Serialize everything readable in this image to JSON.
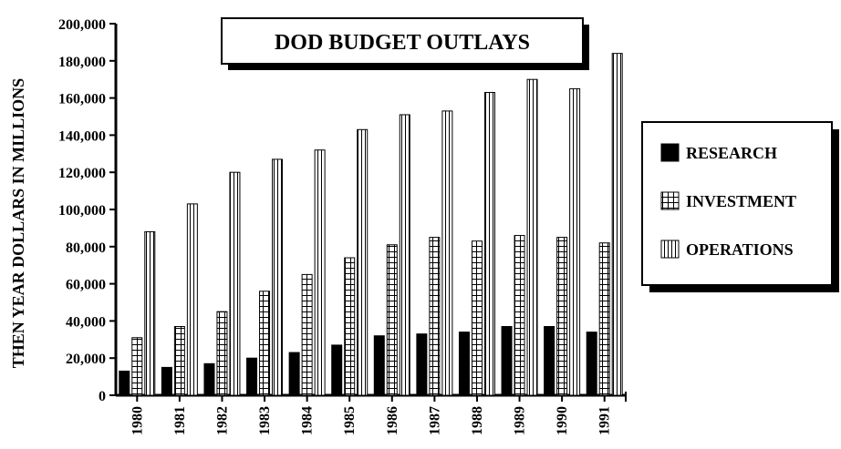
{
  "chart_data": {
    "type": "bar",
    "title": "DOD BUDGET OUTLAYS",
    "xlabel": "",
    "ylabel": "THEN YEAR DOLLARS IN MILLIONS",
    "ylim": [
      0,
      200000
    ],
    "yticks": [
      "0",
      "20,000",
      "40,000",
      "60,000",
      "80,000",
      "100,000",
      "120,000",
      "140,000",
      "160,000",
      "180,000",
      "200,000"
    ],
    "categories": [
      "1980",
      "1981",
      "1982",
      "1983",
      "1984",
      "1985",
      "1986",
      "1987",
      "1988",
      "1989",
      "1990",
      "1991"
    ],
    "series": [
      {
        "name": "RESEARCH",
        "pattern": "solid",
        "values": [
          13000,
          15000,
          17000,
          20000,
          23000,
          27000,
          32000,
          33000,
          34000,
          37000,
          37000,
          34000
        ]
      },
      {
        "name": "INVESTMENT",
        "pattern": "grid",
        "values": [
          31000,
          37000,
          45000,
          56000,
          65000,
          74000,
          81000,
          85000,
          83000,
          86000,
          85000,
          82000
        ]
      },
      {
        "name": "OPERATIONS",
        "pattern": "vertical-lines",
        "values": [
          88000,
          103000,
          120000,
          127000,
          132000,
          143000,
          151000,
          153000,
          163000,
          170000,
          165000,
          184000
        ]
      }
    ],
    "legend_position": "right",
    "grid": false
  }
}
